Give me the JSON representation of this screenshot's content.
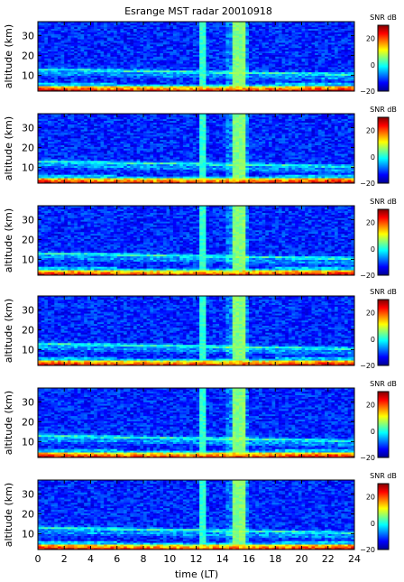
{
  "chart_data": {
    "type": "heatmap",
    "title": "Esrange MST radar 20010918",
    "xlabel": "time (LT)",
    "xlim": [
      0,
      24
    ],
    "x_ticks": [
      "0",
      "2",
      "4",
      "6",
      "8",
      "10",
      "12",
      "14",
      "16",
      "18",
      "20",
      "22",
      "24"
    ],
    "panels": [
      {
        "ylabel": "altitude (km)",
        "ylim": [
          2,
          37
        ],
        "y_ticks": [
          "10",
          "20",
          "30"
        ],
        "colorbar_label": "SNR dB",
        "clim": [
          -20,
          30
        ],
        "colorbar_ticks": [
          "20",
          "0",
          "−20"
        ]
      },
      {
        "ylabel": "altitude (km)",
        "ylim": [
          2,
          37
        ],
        "y_ticks": [
          "10",
          "20",
          "30"
        ],
        "colorbar_label": "SNR dB",
        "clim": [
          -20,
          30
        ],
        "colorbar_ticks": [
          "20",
          "0",
          "−20"
        ]
      },
      {
        "ylabel": "altitude (km)",
        "ylim": [
          2,
          37
        ],
        "y_ticks": [
          "10",
          "20",
          "30"
        ],
        "colorbar_label": "SNR dB",
        "clim": [
          -20,
          30
        ],
        "colorbar_ticks": [
          "20",
          "0",
          "−20"
        ]
      },
      {
        "ylabel": "altitude (km)",
        "ylim": [
          2,
          37
        ],
        "y_ticks": [
          "10",
          "20",
          "30"
        ],
        "colorbar_label": "SNR dB",
        "clim": [
          -20,
          30
        ],
        "colorbar_ticks": [
          "20",
          "0",
          "−20"
        ]
      },
      {
        "ylabel": "altitude (km)",
        "ylim": [
          2,
          37
        ],
        "y_ticks": [
          "10",
          "20",
          "30"
        ],
        "colorbar_label": "SNR dB",
        "clim": [
          -20,
          30
        ],
        "colorbar_ticks": [
          "20",
          "0",
          "−20"
        ]
      },
      {
        "ylabel": "altitude (km)",
        "ylim": [
          2,
          37
        ],
        "y_ticks": [
          "10",
          "20",
          "30"
        ],
        "colorbar_label": "SNR dB",
        "clim": [
          -20,
          30
        ],
        "colorbar_ticks": [
          "20",
          "0",
          "−20"
        ]
      }
    ],
    "features": {
      "tropopause_altitude_km": [
        13,
        10.5
      ],
      "vertical_streaks_LT": [
        12.5,
        14.8,
        15.1,
        15.5,
        15.7
      ],
      "surface_layer_altitude_km": [
        2,
        5
      ],
      "background_snr_db": -12
    }
  }
}
